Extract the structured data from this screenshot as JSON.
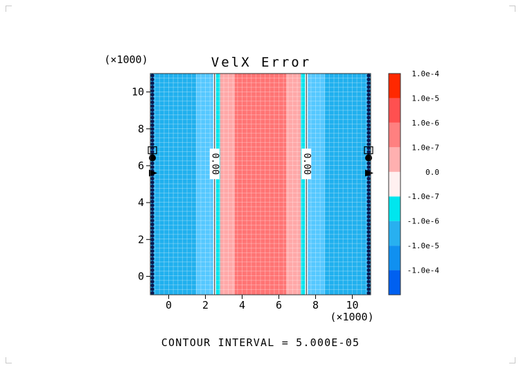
{
  "chart_data": {
    "type": "heatmap",
    "title": "VelX Error",
    "x_scale_label": "(×1000)",
    "y_scale_label": "(×1000)",
    "xlim": [
      -1,
      11
    ],
    "ylim": [
      -1,
      11
    ],
    "x_ticks": [
      0,
      2,
      4,
      6,
      8,
      10
    ],
    "y_ticks": [
      0,
      2,
      4,
      6,
      8,
      10
    ],
    "grid": true,
    "bands": [
      {
        "x0": -1,
        "x1": 1.5,
        "color": "#20b0ee"
      },
      {
        "x0": 1.5,
        "x1": 2.5,
        "color": "#55c8ff"
      },
      {
        "x0": 2.5,
        "x1": 2.8,
        "color": "#00e5ee"
      },
      {
        "x0": 2.8,
        "x1": 3.6,
        "color": "#ffa8a8"
      },
      {
        "x0": 3.6,
        "x1": 6.4,
        "color": "#ff7474"
      },
      {
        "x0": 6.4,
        "x1": 7.2,
        "color": "#ffa8a8"
      },
      {
        "x0": 7.2,
        "x1": 7.5,
        "color": "#00e5ee"
      },
      {
        "x0": 7.5,
        "x1": 8.5,
        "color": "#55c8ff"
      },
      {
        "x0": 8.5,
        "x1": 11,
        "color": "#20b0ee"
      }
    ],
    "contours": [
      {
        "x": 2.5,
        "label": "0.00"
      },
      {
        "x": 7.5,
        "label": "0.00"
      }
    ],
    "colorbar": {
      "colors": [
        "#0060f0",
        "#1090f0",
        "#28b0f0",
        "#00e6ee",
        "#fff0f0",
        "#ffb0b0",
        "#ff8080",
        "#ff5050",
        "#ff2800"
      ],
      "labels": [
        "-1.0e-4",
        "-1.0e-5",
        "-1.0e-6",
        "-1.0e-7",
        "0.0",
        "1.0e-7",
        "1.0e-6",
        "1.0e-5",
        "1.0e-4"
      ]
    },
    "footer": "CONTOUR INTERVAL = 5.000E-05"
  }
}
